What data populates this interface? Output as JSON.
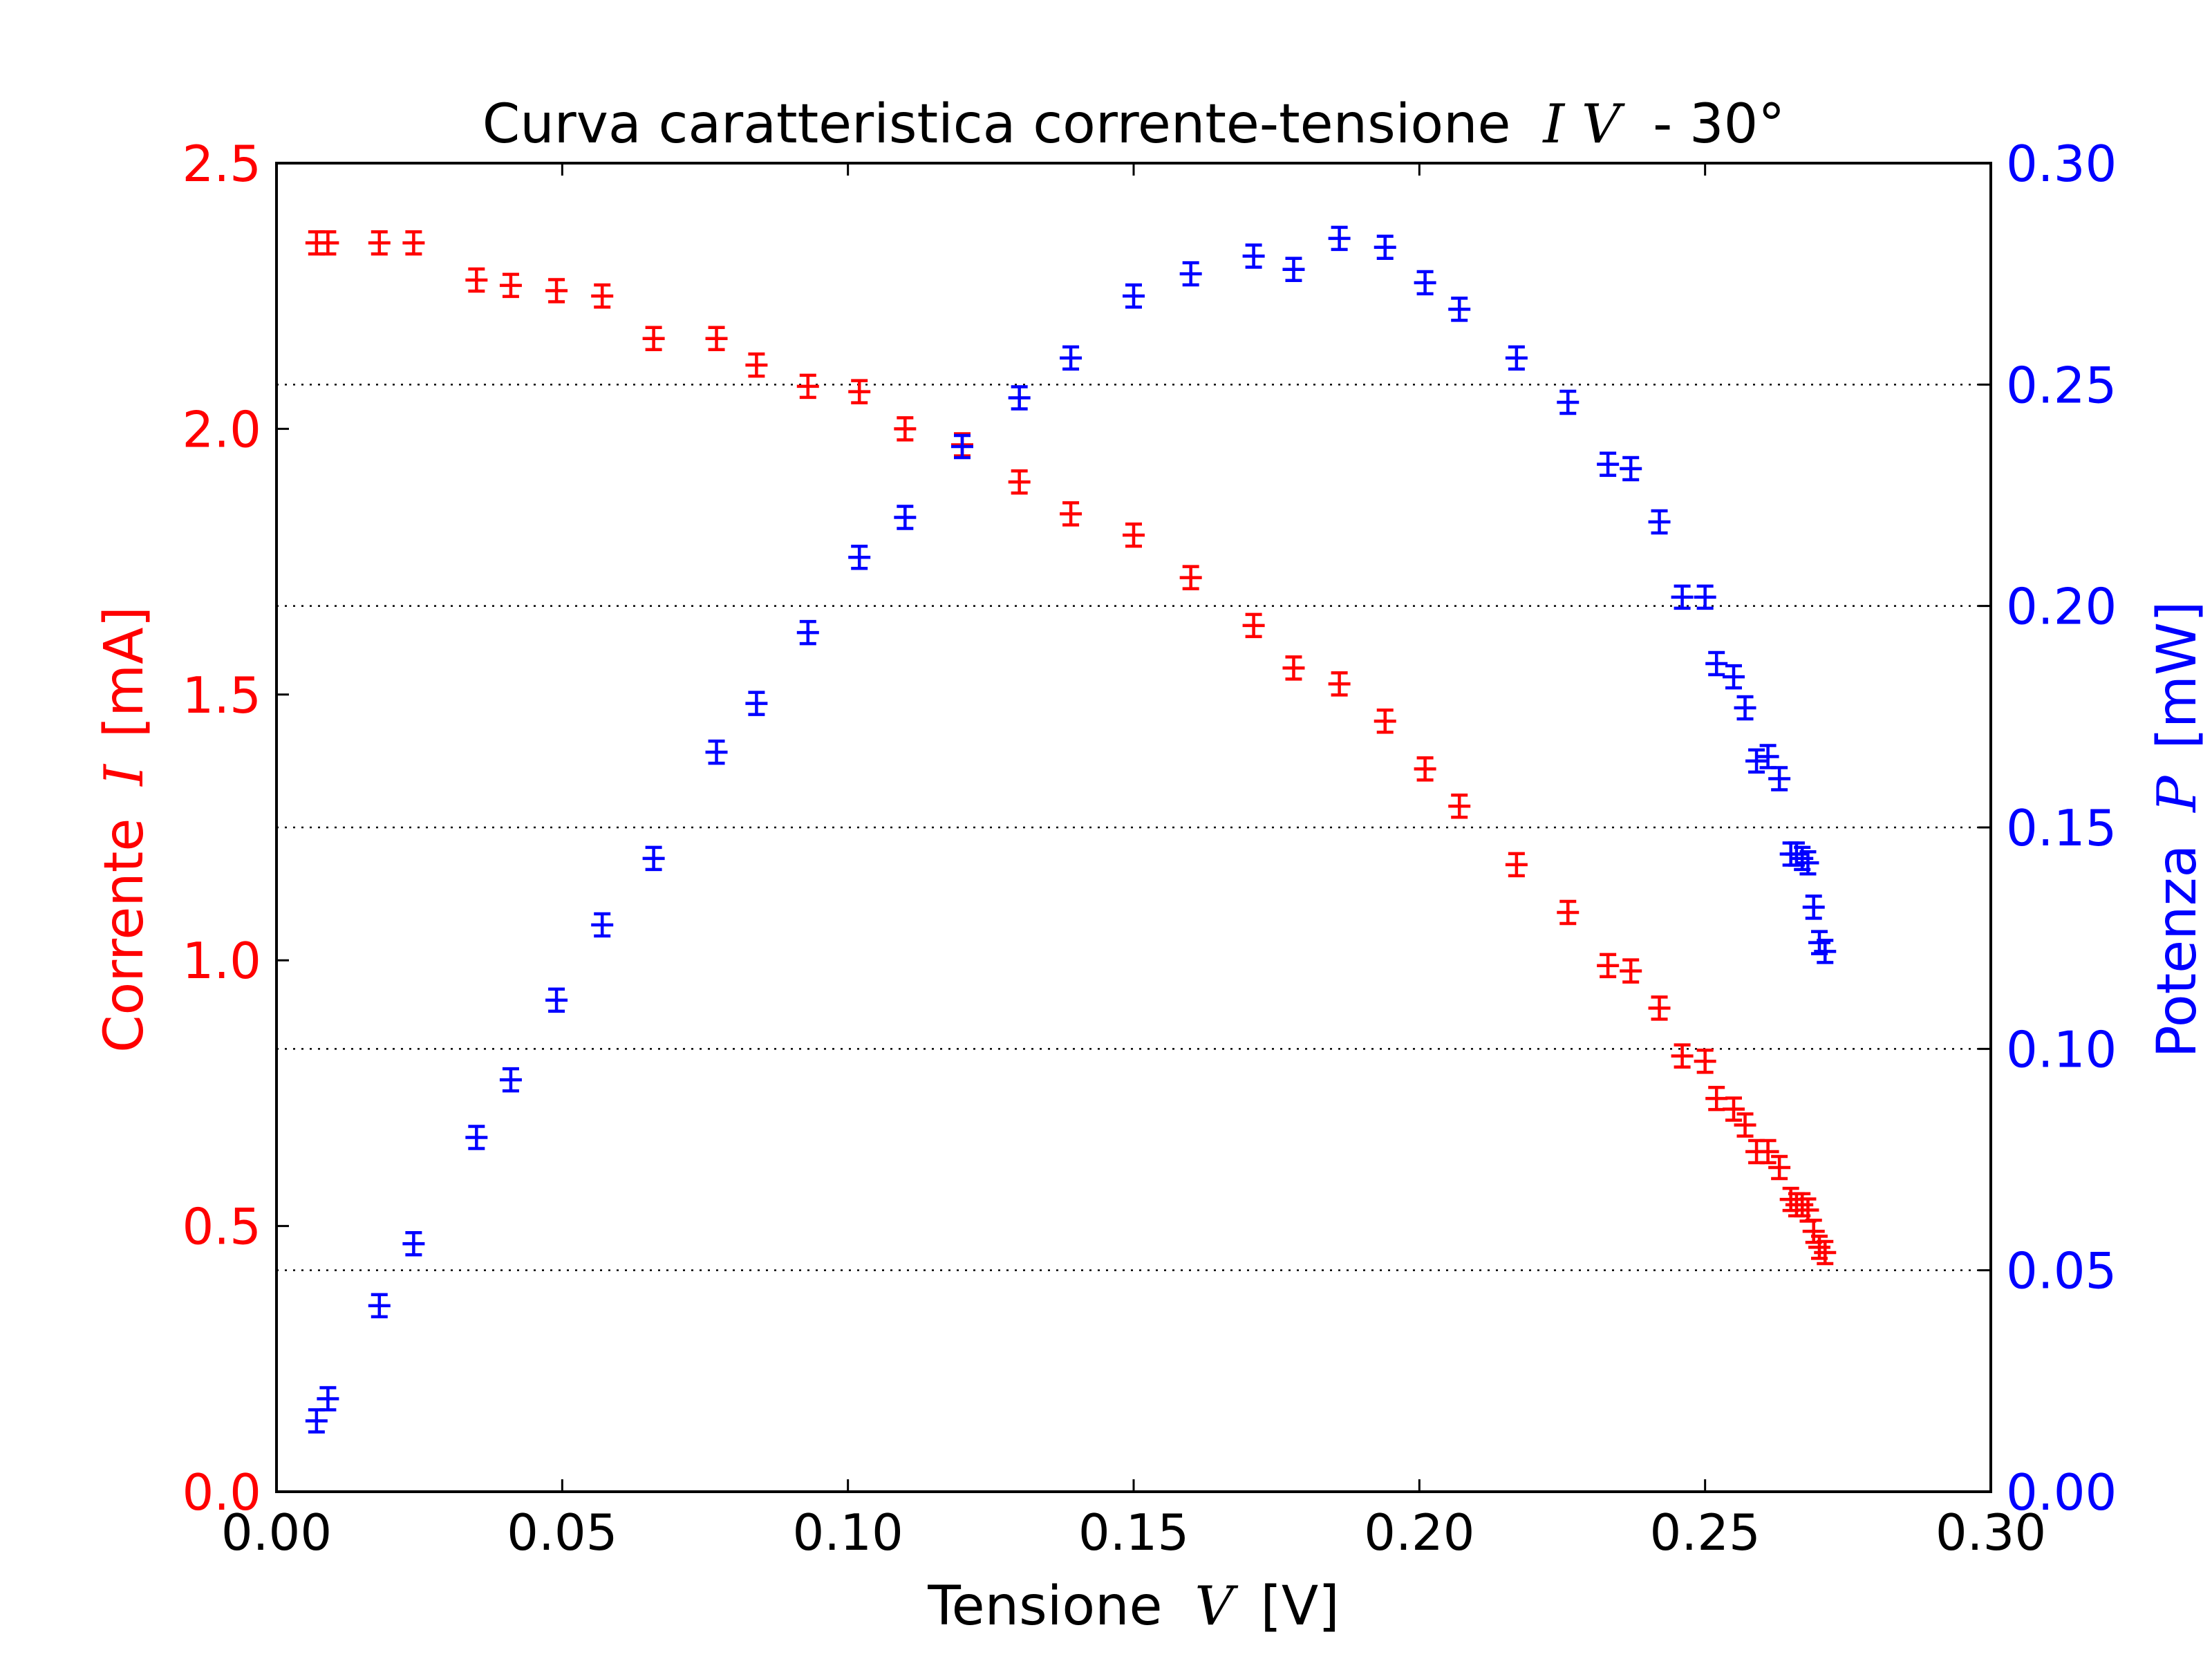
{
  "chart_data": {
    "type": "scatter",
    "title": "Curva caratteristica corrente-tensione",
    "title_symbols": "I V",
    "title_suffix": "- 30°",
    "xlabel": "Tensione",
    "xlabel_symbol": "V",
    "xlabel_unit": "[V]",
    "ylabel_left": "Corrente",
    "ylabel_left_symbol": "I",
    "ylabel_left_unit": "[mA]",
    "ylabel_right": "Potenza",
    "ylabel_right_symbol": "P",
    "ylabel_right_unit": "[mW]",
    "xlim": [
      0.0,
      0.3
    ],
    "ylim_left": [
      0.0,
      2.5
    ],
    "ylim_right": [
      0.0,
      0.3
    ],
    "xticks": [
      "0.00",
      "0.05",
      "0.10",
      "0.15",
      "0.20",
      "0.25",
      "0.30"
    ],
    "yticks_left": [
      "0.0",
      "0.5",
      "1.0",
      "1.5",
      "2.0",
      "2.5"
    ],
    "yticks_right": [
      "0.00",
      "0.05",
      "0.10",
      "0.15",
      "0.20",
      "0.25",
      "0.30"
    ],
    "grid": "dotted horizontal lines at right-axis ticks",
    "colors": {
      "current": "#ff0000",
      "power": "#0000ff",
      "axes": "#000000"
    },
    "series": [
      {
        "axis": "left",
        "color": "#ff0000",
        "points": [
          [
            0.007,
            2.35
          ],
          [
            0.009,
            2.35
          ],
          [
            0.018,
            2.35
          ],
          [
            0.024,
            2.35
          ],
          [
            0.035,
            2.28
          ],
          [
            0.041,
            2.27
          ],
          [
            0.049,
            2.26
          ],
          [
            0.057,
            2.25
          ],
          [
            0.066,
            2.17
          ],
          [
            0.077,
            2.17
          ],
          [
            0.084,
            2.12
          ],
          [
            0.093,
            2.08
          ],
          [
            0.102,
            2.07
          ],
          [
            0.11,
            2.0
          ],
          [
            0.12,
            1.97
          ],
          [
            0.13,
            1.9
          ],
          [
            0.139,
            1.84
          ],
          [
            0.15,
            1.8
          ],
          [
            0.16,
            1.72
          ],
          [
            0.171,
            1.63
          ],
          [
            0.178,
            1.55
          ],
          [
            0.186,
            1.52
          ],
          [
            0.194,
            1.45
          ],
          [
            0.201,
            1.36
          ],
          [
            0.207,
            1.29
          ],
          [
            0.217,
            1.18
          ],
          [
            0.226,
            1.09
          ],
          [
            0.233,
            0.99
          ],
          [
            0.237,
            0.98
          ],
          [
            0.242,
            0.91
          ],
          [
            0.246,
            0.82
          ],
          [
            0.25,
            0.81
          ],
          [
            0.252,
            0.74
          ],
          [
            0.255,
            0.72
          ],
          [
            0.257,
            0.69
          ],
          [
            0.259,
            0.64
          ],
          [
            0.261,
            0.64
          ],
          [
            0.263,
            0.61
          ],
          [
            0.265,
            0.55
          ],
          [
            0.266,
            0.54
          ],
          [
            0.267,
            0.54
          ],
          [
            0.268,
            0.53
          ],
          [
            0.269,
            0.49
          ],
          [
            0.27,
            0.46
          ],
          [
            0.271,
            0.45
          ]
        ]
      },
      {
        "axis": "right",
        "color": "#0000ff",
        "points": [
          [
            0.007,
            0.016
          ],
          [
            0.009,
            0.021
          ],
          [
            0.018,
            0.042
          ],
          [
            0.024,
            0.056
          ],
          [
            0.035,
            0.08
          ],
          [
            0.041,
            0.093
          ],
          [
            0.049,
            0.111
          ],
          [
            0.057,
            0.128
          ],
          [
            0.066,
            0.143
          ],
          [
            0.077,
            0.167
          ],
          [
            0.084,
            0.178
          ],
          [
            0.093,
            0.194
          ],
          [
            0.102,
            0.211
          ],
          [
            0.11,
            0.22
          ],
          [
            0.12,
            0.236
          ],
          [
            0.13,
            0.247
          ],
          [
            0.139,
            0.256
          ],
          [
            0.15,
            0.27
          ],
          [
            0.16,
            0.275
          ],
          [
            0.171,
            0.279
          ],
          [
            0.178,
            0.276
          ],
          [
            0.186,
            0.283
          ],
          [
            0.194,
            0.281
          ],
          [
            0.201,
            0.273
          ],
          [
            0.207,
            0.267
          ],
          [
            0.217,
            0.256
          ],
          [
            0.226,
            0.246
          ],
          [
            0.233,
            0.232
          ],
          [
            0.237,
            0.231
          ],
          [
            0.242,
            0.219
          ],
          [
            0.246,
            0.202
          ],
          [
            0.25,
            0.202
          ],
          [
            0.252,
            0.187
          ],
          [
            0.255,
            0.184
          ],
          [
            0.257,
            0.177
          ],
          [
            0.259,
            0.165
          ],
          [
            0.261,
            0.166
          ],
          [
            0.263,
            0.161
          ],
          [
            0.265,
            0.144
          ],
          [
            0.266,
            0.144
          ],
          [
            0.267,
            0.143
          ],
          [
            0.268,
            0.142
          ],
          [
            0.269,
            0.132
          ],
          [
            0.27,
            0.124
          ],
          [
            0.271,
            0.122
          ]
        ]
      }
    ]
  }
}
